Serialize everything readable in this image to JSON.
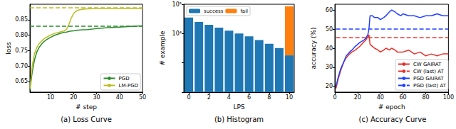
{
  "chart_data": [
    {
      "type": "line",
      "title": "(a) Loss Curve",
      "x_label": "# step",
      "y_label": "loss",
      "x": [
        1,
        2,
        3,
        4,
        5,
        6,
        7,
        8,
        10,
        12,
        14,
        16,
        17,
        18,
        19,
        20,
        21,
        22,
        24,
        26,
        30,
        35,
        40,
        45,
        50
      ],
      "series": [
        {
          "name": "PGD",
          "color": "#2a8a2a",
          "line_style": "solid",
          "values": [
            0.622,
            0.68,
            0.72,
            0.745,
            0.76,
            0.77,
            0.778,
            0.784,
            0.793,
            0.8,
            0.805,
            0.809,
            0.81,
            0.812,
            0.813,
            0.814,
            0.815,
            0.816,
            0.817,
            0.818,
            0.821,
            0.824,
            0.826,
            0.828,
            0.83
          ]
        },
        {
          "name": "LM-PGD",
          "color": "#bcbd22",
          "line_style": "solid",
          "values": [
            0.627,
            0.7,
            0.74,
            0.76,
            0.772,
            0.78,
            0.787,
            0.792,
            0.8,
            0.806,
            0.81,
            0.814,
            0.82,
            0.835,
            0.855,
            0.87,
            0.877,
            0.881,
            0.884,
            0.885,
            0.886,
            0.886,
            0.886,
            0.886,
            0.886
          ]
        }
      ],
      "reference_lines": [
        {
          "value": 0.83,
          "color": "#2a8a2a",
          "line_style": "dashed"
        },
        {
          "value": 0.886,
          "color": "#bcbd22",
          "line_style": "dashed"
        }
      ],
      "xlim": [
        1,
        50
      ],
      "xticks": [
        10,
        20,
        30,
        40,
        50
      ],
      "ylim": [
        0.615,
        0.9
      ],
      "yticks": [
        0.65,
        {
          "value": 0.7,
          "label": "0.70"
        },
        0.75,
        {
          "value": 0.8,
          "label": "0.80"
        },
        0.85
      ],
      "grid": false,
      "legend": "bottom-right"
    },
    {
      "type": "bar",
      "title": "(b) Histogram",
      "x_label": "LPS",
      "y_label": "# example",
      "categories": [
        0,
        null,
        2,
        null,
        4,
        null,
        6,
        null,
        8,
        null,
        10
      ],
      "series": [
        {
          "name": "success",
          "color": "#1f77b4",
          "values": [
            35000,
            25000,
            20000,
            16000,
            12500,
            10000,
            8000,
            6000,
            4500,
            3200,
            1800
          ]
        },
        {
          "name": "fail",
          "color": "#ff7f0e",
          "values": [
            null,
            null,
            null,
            null,
            null,
            null,
            null,
            null,
            null,
            null,
            83000
          ]
        }
      ],
      "stacked": true,
      "log": "y",
      "ylim": [
        100,
        100000
      ],
      "yticks": [
        {
          "value": 10000,
          "label": "10⁴"
        },
        {
          "value": 100000,
          "label": "10⁵"
        }
      ],
      "grid": false,
      "legend": "top-left"
    },
    {
      "type": "line",
      "title": "(c) Accuracy Curve",
      "x_label": "# epoch",
      "y_label": "accuracy (%)",
      "x": [
        1,
        3,
        5,
        8,
        10,
        13,
        15,
        18,
        20,
        22,
        25,
        27,
        29,
        30,
        31,
        33,
        35,
        38,
        40,
        43,
        45,
        48,
        50,
        53,
        55,
        58,
        60,
        65,
        70,
        75,
        80,
        85,
        90,
        95,
        100
      ],
      "series": [
        {
          "name": "CW GAIRAT",
          "color": "#e8302a",
          "line_style": "solid",
          "values": [
            19,
            24,
            28,
            33,
            35,
            37,
            38,
            39,
            40,
            41,
            43,
            44,
            46,
            47,
            42,
            41,
            40,
            39,
            38,
            39,
            40,
            39,
            40,
            39,
            38,
            38,
            38,
            39,
            37,
            38,
            36,
            37,
            36,
            37,
            37
          ]
        },
        {
          "name": "CW (last) AT",
          "color": "#e8302a",
          "line_style": "dashed",
          "values": [
            45.5,
            45.5,
            45.5,
            45.5,
            45.5,
            45.5,
            45.5,
            45.5,
            45.5,
            45.5,
            45.5,
            45.5,
            45.5,
            45.5,
            45.5,
            45.5,
            45.5,
            45.5,
            45.5,
            45.5,
            45.5,
            45.5,
            45.5,
            45.5,
            45.5,
            45.5,
            45.5,
            45.5,
            45.5,
            45.5,
            45.5,
            45.5,
            45.5,
            45.5,
            45.5
          ]
        },
        {
          "name": "PGD GAIRAT",
          "color": "#2040ff",
          "line_style": "solid",
          "values": [
            20,
            25,
            29,
            33,
            36,
            38,
            39,
            41,
            42,
            43,
            44,
            45,
            47,
            50,
            57,
            57,
            56,
            56,
            55,
            56,
            57,
            59,
            60,
            59,
            58,
            57,
            58,
            57,
            57,
            56,
            57,
            57,
            58,
            57,
            57
          ]
        },
        {
          "name": "PGD (last) AT",
          "color": "#2040ff",
          "line_style": "dashed",
          "values": [
            50,
            50,
            50,
            50,
            50,
            50,
            50,
            50,
            50,
            50,
            50,
            50,
            50,
            50,
            50,
            50,
            50,
            50,
            50,
            50,
            50,
            50,
            50,
            50,
            50,
            50,
            50,
            50,
            50,
            50,
            50,
            50,
            50,
            50,
            50
          ]
        }
      ],
      "xlim": [
        0,
        100
      ],
      "xticks": [
        0,
        20,
        40,
        60,
        80,
        100
      ],
      "ylim": [
        17,
        63
      ],
      "yticks": [
        20,
        30,
        40,
        50,
        60
      ],
      "grid": false,
      "legend": "bottom-right"
    }
  ]
}
